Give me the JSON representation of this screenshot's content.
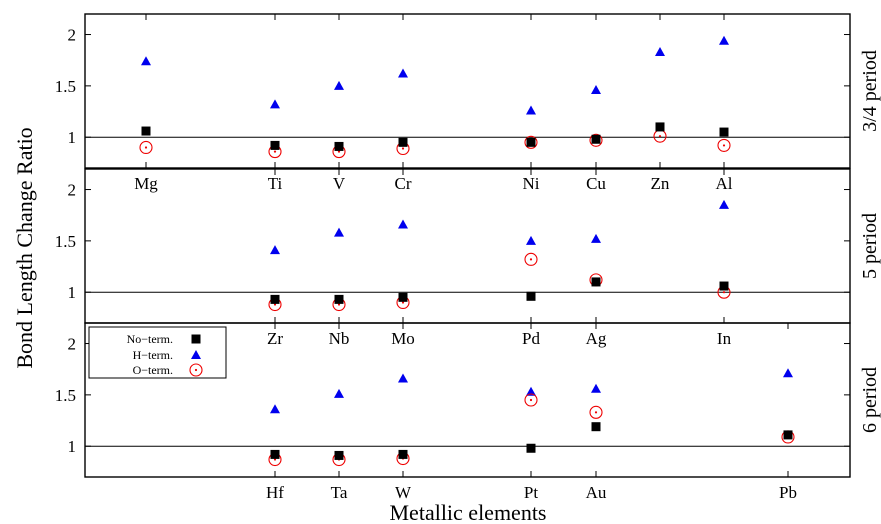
{
  "chart_data": {
    "type": "scatter",
    "ylabel": "Bond Length Change Ratio",
    "xlabel": "Metallic elements",
    "colors": {
      "no_term": "#000000",
      "h_term": "#0000ee",
      "o_term": "#ee0000",
      "reference_line": "#000000"
    },
    "legend": {
      "placement": "top-left of bottom panel",
      "entries": [
        {
          "label": "No−term.",
          "marker": "square",
          "color": "#000000"
        },
        {
          "label": "H−term.",
          "marker": "triangle",
          "color": "#0000ee"
        },
        {
          "label": "O−term.",
          "marker": "dotted-circle",
          "color": "#ee0000"
        }
      ]
    },
    "element_columns": 10,
    "panels": [
      {
        "label": "3/4 period",
        "ylim": [
          0.7,
          2.2
        ],
        "yticks": [
          "1",
          "1.5",
          "2"
        ],
        "reference_y": 1,
        "elements": [
          {
            "name": "Mg",
            "col": 0,
            "no_term": 1.06,
            "h_term": 1.74,
            "o_term": 0.9
          },
          {
            "name": "Ti",
            "col": 2,
            "no_term": 0.92,
            "h_term": 1.32,
            "o_term": 0.86
          },
          {
            "name": "V",
            "col": 3,
            "no_term": 0.91,
            "h_term": 1.5,
            "o_term": 0.86
          },
          {
            "name": "Cr",
            "col": 4,
            "no_term": 0.95,
            "h_term": 1.62,
            "o_term": 0.89
          },
          {
            "name": "Ni",
            "col": 6,
            "no_term": 0.95,
            "h_term": 1.26,
            "o_term": 0.95
          },
          {
            "name": "Cu",
            "col": 7,
            "no_term": 0.98,
            "h_term": 1.46,
            "o_term": 0.97
          },
          {
            "name": "Zn",
            "col": 8,
            "no_term": 1.1,
            "h_term": 1.83,
            "o_term": 1.01
          },
          {
            "name": "Al",
            "col": 9,
            "no_term": 1.05,
            "h_term": 1.94,
            "o_term": 0.92
          }
        ]
      },
      {
        "label": "5 period",
        "ylim": [
          0.7,
          2.2
        ],
        "yticks": [
          "1",
          "1.5",
          "2"
        ],
        "reference_y": 1,
        "elements": [
          {
            "name": "Zr",
            "col": 2,
            "no_term": 0.93,
            "h_term": 1.41,
            "o_term": 0.88
          },
          {
            "name": "Nb",
            "col": 3,
            "no_term": 0.93,
            "h_term": 1.58,
            "o_term": 0.88
          },
          {
            "name": "Mo",
            "col": 4,
            "no_term": 0.95,
            "h_term": 1.66,
            "o_term": 0.9
          },
          {
            "name": "Pd",
            "col": 6,
            "no_term": 0.96,
            "h_term": 1.5,
            "o_term": 1.32
          },
          {
            "name": "Ag",
            "col": 7,
            "no_term": 1.1,
            "h_term": 1.52,
            "o_term": 1.12
          },
          {
            "name": "In",
            "col": 9,
            "no_term": 1.06,
            "h_term": 1.85,
            "o_term": 1.0
          }
        ]
      },
      {
        "label": "6 period",
        "ylim": [
          0.7,
          2.2
        ],
        "yticks": [
          "1",
          "1.5",
          "2"
        ],
        "reference_y": 1,
        "elements": [
          {
            "name": "Hf",
            "col": 2,
            "no_term": 0.92,
            "h_term": 1.36,
            "o_term": 0.87
          },
          {
            "name": "Ta",
            "col": 3,
            "no_term": 0.91,
            "h_term": 1.51,
            "o_term": 0.87
          },
          {
            "name": "W",
            "col": 4,
            "no_term": 0.92,
            "h_term": 1.66,
            "o_term": 0.88
          },
          {
            "name": "Pt",
            "col": 6,
            "no_term": 0.98,
            "h_term": 1.53,
            "o_term": 1.45
          },
          {
            "name": "Au",
            "col": 7,
            "no_term": 1.19,
            "h_term": 1.56,
            "o_term": 1.33
          },
          {
            "name": "Pb",
            "col": 10,
            "no_term": 1.11,
            "h_term": 1.71,
            "o_term": 1.09
          }
        ]
      }
    ]
  }
}
